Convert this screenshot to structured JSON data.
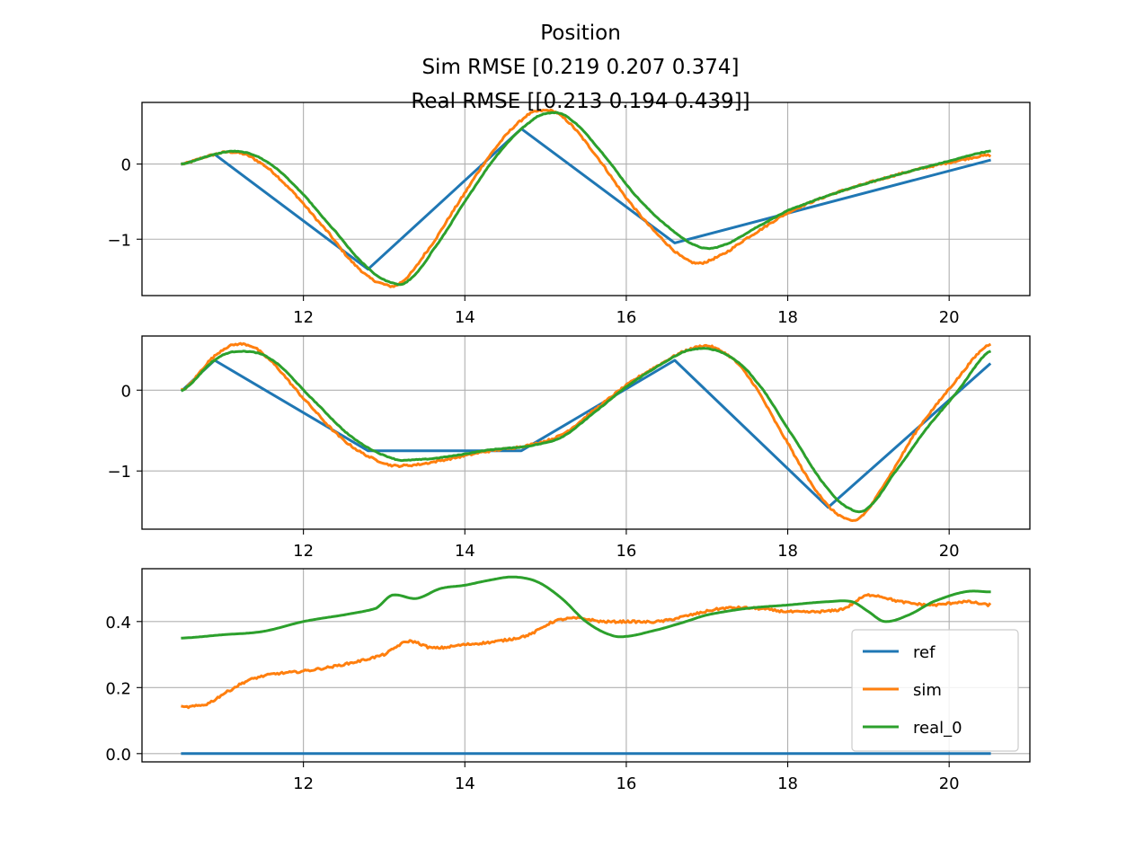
{
  "title_lines": [
    "Position",
    "Sim RMSE [0.219 0.207 0.374]",
    "Real RMSE [[0.213 0.194 0.439]]"
  ],
  "colors": {
    "ref": "#1f77b4",
    "sim": "#ff7f0e",
    "real_0": "#2ca02c",
    "grid": "#b0b0b0",
    "axes": "#000000"
  },
  "legend": {
    "location": "lower-right",
    "panel": 3,
    "entries": [
      "ref",
      "sim",
      "real_0"
    ]
  },
  "chart_data": [
    {
      "type": "line",
      "xlim": [
        10.0,
        21.0
      ],
      "ylim": [
        -1.75,
        0.82
      ],
      "xticks": [
        12,
        14,
        16,
        18,
        20
      ],
      "xtick_labels": [
        "12",
        "14",
        "16",
        "18",
        "20"
      ],
      "yticks": [
        0,
        -1
      ],
      "ytick_labels": [
        "0",
        "−1"
      ],
      "grid": true,
      "series": [
        {
          "name": "ref",
          "color": "#1f77b4",
          "noise": 0,
          "x": [
            10.5,
            10.9,
            12.8,
            14.7,
            16.6,
            20.5
          ],
          "y": [
            0.0,
            0.13,
            -1.4,
            0.47,
            -1.05,
            0.05
          ]
        },
        {
          "name": "sim",
          "color": "#ff7f0e",
          "noise": 0.012,
          "x": [
            10.5,
            10.8,
            11.1,
            11.4,
            11.8,
            12.3,
            12.7,
            13.0,
            13.2,
            13.5,
            13.9,
            14.3,
            14.7,
            14.95,
            15.2,
            15.6,
            16.0,
            16.4,
            16.8,
            17.1,
            17.5,
            18.0,
            18.5,
            19.0,
            19.5,
            20.0,
            20.5
          ],
          "y": [
            0.0,
            0.1,
            0.16,
            0.06,
            -0.3,
            -0.9,
            -1.4,
            -1.6,
            -1.58,
            -1.2,
            -0.55,
            0.1,
            0.58,
            0.71,
            0.63,
            0.15,
            -0.45,
            -0.95,
            -1.3,
            -1.25,
            -0.98,
            -0.65,
            -0.42,
            -0.25,
            -0.1,
            0.02,
            0.12
          ]
        },
        {
          "name": "real_0",
          "color": "#2ca02c",
          "noise": 0.004,
          "x": [
            10.5,
            10.8,
            11.15,
            11.5,
            11.9,
            12.4,
            12.8,
            13.1,
            13.3,
            13.6,
            14.0,
            14.4,
            14.8,
            15.05,
            15.3,
            15.7,
            16.1,
            16.5,
            16.9,
            17.2,
            17.6,
            18.0,
            18.5,
            19.0,
            19.5,
            20.0,
            20.5
          ],
          "y": [
            0.0,
            0.1,
            0.17,
            0.06,
            -0.3,
            -0.9,
            -1.38,
            -1.58,
            -1.55,
            -1.15,
            -0.5,
            0.12,
            0.55,
            0.68,
            0.6,
            0.15,
            -0.4,
            -0.82,
            -1.1,
            -1.08,
            -0.85,
            -0.62,
            -0.42,
            -0.25,
            -0.1,
            0.04,
            0.17
          ]
        }
      ]
    },
    {
      "type": "line",
      "xlim": [
        10.0,
        21.0
      ],
      "ylim": [
        -1.72,
        0.67
      ],
      "xticks": [
        12,
        14,
        16,
        18,
        20
      ],
      "xtick_labels": [
        "12",
        "14",
        "16",
        "18",
        "20"
      ],
      "yticks": [
        0,
        -1
      ],
      "ytick_labels": [
        "0",
        "−1"
      ],
      "grid": true,
      "series": [
        {
          "name": "ref",
          "color": "#1f77b4",
          "noise": 0,
          "x": [
            10.5,
            10.9,
            12.8,
            14.7,
            16.6,
            18.5,
            20.5
          ],
          "y": [
            0.0,
            0.37,
            -0.75,
            -0.75,
            0.37,
            -1.45,
            0.32
          ]
        },
        {
          "name": "sim",
          "color": "#ff7f0e",
          "noise": 0.012,
          "x": [
            10.5,
            10.9,
            11.2,
            11.5,
            12.0,
            12.5,
            13.0,
            13.3,
            13.7,
            14.2,
            14.8,
            15.2,
            15.6,
            16.0,
            16.4,
            16.8,
            17.1,
            17.5,
            18.0,
            18.4,
            18.7,
            18.9,
            19.2,
            19.6,
            20.0,
            20.5
          ],
          "y": [
            0.0,
            0.42,
            0.57,
            0.44,
            -0.1,
            -0.62,
            -0.9,
            -0.93,
            -0.87,
            -0.77,
            -0.68,
            -0.55,
            -0.25,
            0.06,
            0.31,
            0.51,
            0.52,
            0.18,
            -0.65,
            -1.3,
            -1.58,
            -1.57,
            -1.15,
            -0.5,
            0.02,
            0.57
          ]
        },
        {
          "name": "real_0",
          "color": "#2ca02c",
          "noise": 0.004,
          "x": [
            10.5,
            10.9,
            11.2,
            11.6,
            12.1,
            12.6,
            13.1,
            13.4,
            13.8,
            14.3,
            14.8,
            15.2,
            15.6,
            16.0,
            16.4,
            16.8,
            17.2,
            17.6,
            18.1,
            18.5,
            18.8,
            19.0,
            19.3,
            19.7,
            20.1,
            20.5
          ],
          "y": [
            0.0,
            0.37,
            0.48,
            0.38,
            -0.1,
            -0.58,
            -0.84,
            -0.86,
            -0.82,
            -0.74,
            -0.69,
            -0.58,
            -0.28,
            0.04,
            0.3,
            0.5,
            0.46,
            0.12,
            -0.62,
            -1.22,
            -1.48,
            -1.45,
            -1.05,
            -0.5,
            -0.02,
            0.48
          ]
        }
      ]
    },
    {
      "type": "line",
      "xlim": [
        10.0,
        21.0
      ],
      "ylim": [
        -0.025,
        0.56
      ],
      "xticks": [
        12,
        14,
        16,
        18,
        20
      ],
      "xtick_labels": [
        "12",
        "14",
        "16",
        "18",
        "20"
      ],
      "yticks": [
        0.0,
        0.2,
        0.4
      ],
      "ytick_labels": [
        "0.0",
        "0.2",
        "0.4"
      ],
      "grid": true,
      "series": [
        {
          "name": "ref",
          "color": "#1f77b4",
          "noise": 0,
          "x": [
            10.5,
            20.5
          ],
          "y": [
            0.0,
            0.0
          ]
        },
        {
          "name": "sim",
          "color": "#ff7f0e",
          "noise": 0.014,
          "x": [
            10.5,
            10.8,
            11.0,
            11.3,
            11.6,
            12.0,
            12.5,
            13.0,
            13.3,
            13.6,
            14.0,
            14.4,
            14.8,
            15.1,
            15.4,
            15.7,
            16.0,
            16.4,
            16.8,
            17.2,
            17.6,
            18.0,
            18.4,
            18.7,
            19.0,
            19.4,
            19.8,
            20.2,
            20.5
          ],
          "y": [
            0.14,
            0.15,
            0.18,
            0.22,
            0.24,
            0.25,
            0.27,
            0.3,
            0.34,
            0.32,
            0.33,
            0.34,
            0.36,
            0.4,
            0.41,
            0.4,
            0.4,
            0.4,
            0.42,
            0.44,
            0.44,
            0.43,
            0.43,
            0.44,
            0.48,
            0.46,
            0.45,
            0.46,
            0.45
          ]
        },
        {
          "name": "real_0",
          "color": "#2ca02c",
          "noise": 0,
          "x": [
            10.5,
            11.0,
            11.5,
            12.0,
            12.5,
            12.9,
            13.1,
            13.4,
            13.7,
            14.0,
            14.3,
            14.6,
            14.9,
            15.2,
            15.5,
            15.8,
            16.0,
            16.3,
            16.6,
            17.0,
            17.5,
            18.0,
            18.5,
            18.8,
            19.0,
            19.2,
            19.5,
            19.8,
            20.2,
            20.5
          ],
          "y": [
            0.35,
            0.36,
            0.37,
            0.4,
            0.42,
            0.44,
            0.48,
            0.47,
            0.5,
            0.51,
            0.525,
            0.535,
            0.52,
            0.47,
            0.4,
            0.36,
            0.355,
            0.37,
            0.39,
            0.42,
            0.44,
            0.45,
            0.46,
            0.46,
            0.43,
            0.4,
            0.42,
            0.46,
            0.49,
            0.49
          ]
        }
      ]
    }
  ]
}
